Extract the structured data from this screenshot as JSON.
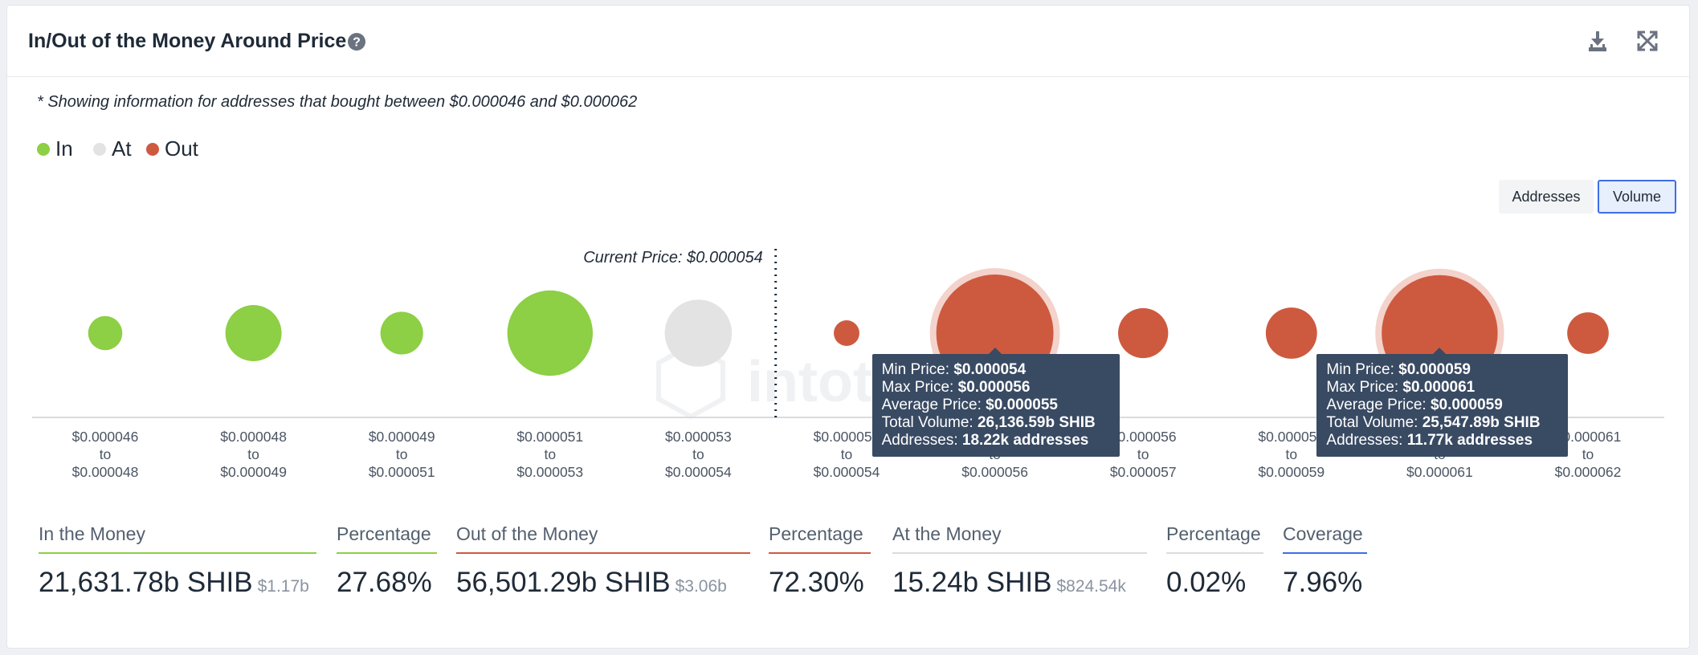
{
  "header": {
    "title": "In/Out of the Money Around Price",
    "help_icon": "question-circle-icon",
    "download_icon": "download-icon",
    "expand_icon": "expand-icon"
  },
  "note": "* Showing information for addresses that bought between $0.000046 and $0.000062",
  "legend": [
    {
      "label": "In",
      "color": "#8dcf45"
    },
    {
      "label": "At",
      "color": "#e3e3e3"
    },
    {
      "label": "Out",
      "color": "#cd5a3f"
    }
  ],
  "toggles": {
    "addresses": "Addresses",
    "volume": "Volume",
    "selected": "Volume"
  },
  "watermark": "intotheblock",
  "chart_data": {
    "type": "scatter",
    "metric": "Volume",
    "current_price_label": "Current Price: $0.000054",
    "categories": [
      {
        "from": "$0.000046",
        "to": "$0.000048"
      },
      {
        "from": "$0.000048",
        "to": "$0.000049"
      },
      {
        "from": "$0.000049",
        "to": "$0.000051"
      },
      {
        "from": "$0.000051",
        "to": "$0.000053"
      },
      {
        "from": "$0.000053",
        "to": "$0.000054"
      },
      {
        "from": "$0.000054",
        "to": "$0.000054"
      },
      {
        "from": "",
        "to": "$0.000056"
      },
      {
        "from": "$0.000056",
        "to": "$0.000057"
      },
      {
        "from": "$0.000059",
        "to": "$0.000059"
      },
      {
        "from": "",
        "to": "$0.000061"
      },
      {
        "from": "$0.000061",
        "to": "$0.000062"
      }
    ],
    "bubbles": [
      {
        "status": "In",
        "relative_size": 0.28
      },
      {
        "status": "In",
        "relative_size": 0.46
      },
      {
        "status": "In",
        "relative_size": 0.35
      },
      {
        "status": "In",
        "relative_size": 0.7
      },
      {
        "status": "At",
        "relative_size": 0.55
      },
      {
        "status": "Out",
        "relative_size": 0.21
      },
      {
        "status": "Out",
        "relative_size": 0.96,
        "highlighted": true
      },
      {
        "status": "Out",
        "relative_size": 0.41
      },
      {
        "status": "Out",
        "relative_size": 0.42
      },
      {
        "status": "Out",
        "relative_size": 0.95,
        "highlighted": true
      },
      {
        "status": "Out",
        "relative_size": 0.34
      }
    ],
    "tooltips": [
      {
        "bubble_index": 6,
        "min_price_label": "Min Price:",
        "min_price": "$0.000054",
        "max_price_label": "Max Price:",
        "max_price": "$0.000056",
        "avg_price_label": "Average Price:",
        "avg_price": "$0.000055",
        "volume_label": "Total Volume:",
        "volume": "26,136.59b SHIB",
        "addresses_label": "Addresses:",
        "addresses": "18.22k addresses"
      },
      {
        "bubble_index": 9,
        "min_price_label": "Min Price:",
        "min_price": "$0.000059",
        "max_price_label": "Max Price:",
        "max_price": "$0.000061",
        "avg_price_label": "Average Price:",
        "avg_price": "$0.000059",
        "volume_label": "Total Volume:",
        "volume": "25,547.89b SHIB",
        "addresses_label": "Addresses:",
        "addresses": "11.77k addresses"
      }
    ]
  },
  "stats": [
    {
      "label": "In the Money",
      "value": "21,631.78b SHIB",
      "sub": "$1.17b",
      "color": "#8dcf45"
    },
    {
      "label": "Percentage",
      "value": "27.68%",
      "sub": "",
      "color": "#8dcf45"
    },
    {
      "label": "Out of the Money",
      "value": "56,501.29b SHIB",
      "sub": "$3.06b",
      "color": "#cd5a3f"
    },
    {
      "label": "Percentage",
      "value": "72.30%",
      "sub": "",
      "color": "#cd5a3f"
    },
    {
      "label": "At the Money",
      "value": "15.24b SHIB",
      "sub": "$824.54k",
      "color": "#d9dce0"
    },
    {
      "label": "Percentage",
      "value": "0.02%",
      "sub": "",
      "color": "#d9dce0"
    },
    {
      "label": "Coverage",
      "value": "7.96%",
      "sub": "",
      "color": "#3d6ee8"
    }
  ]
}
